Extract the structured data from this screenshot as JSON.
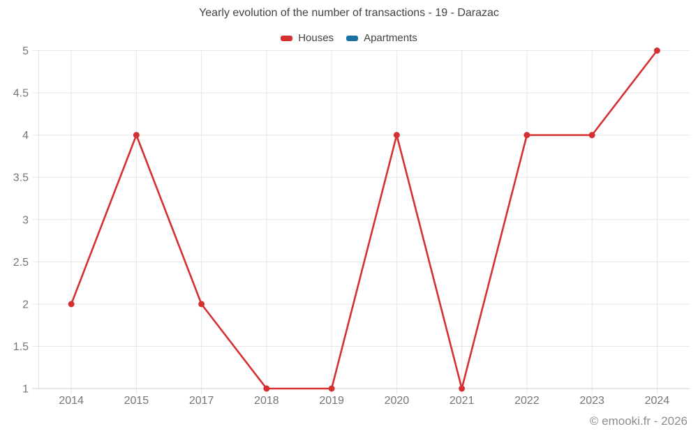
{
  "chart_data": {
    "type": "line",
    "title": "Yearly evolution of the number of transactions - 19 - Darazac",
    "watermark": "© emooki.fr - 2026",
    "categories": [
      "2014",
      "2015",
      "2017",
      "2018",
      "2019",
      "2020",
      "2021",
      "2022",
      "2023",
      "2024"
    ],
    "series": [
      {
        "name": "Houses",
        "color": "#d53031",
        "values": [
          2,
          4,
          2,
          1,
          1,
          4,
          1,
          4,
          4,
          5
        ]
      },
      {
        "name": "Apartments",
        "color": "#1772a3",
        "values": []
      }
    ],
    "ylim": [
      1,
      5
    ],
    "yticks": [
      1,
      1.5,
      2,
      2.5,
      3,
      3.5,
      4,
      4.5,
      5
    ],
    "grid": true,
    "legend_position": "top",
    "xlabel": "",
    "ylabel": "",
    "colors": {
      "grid": "#e6e6e6",
      "axis": "#cccccc",
      "tick_label": "#757575",
      "title_text": "#424242",
      "watermark_text": "#8c8c8c"
    }
  }
}
